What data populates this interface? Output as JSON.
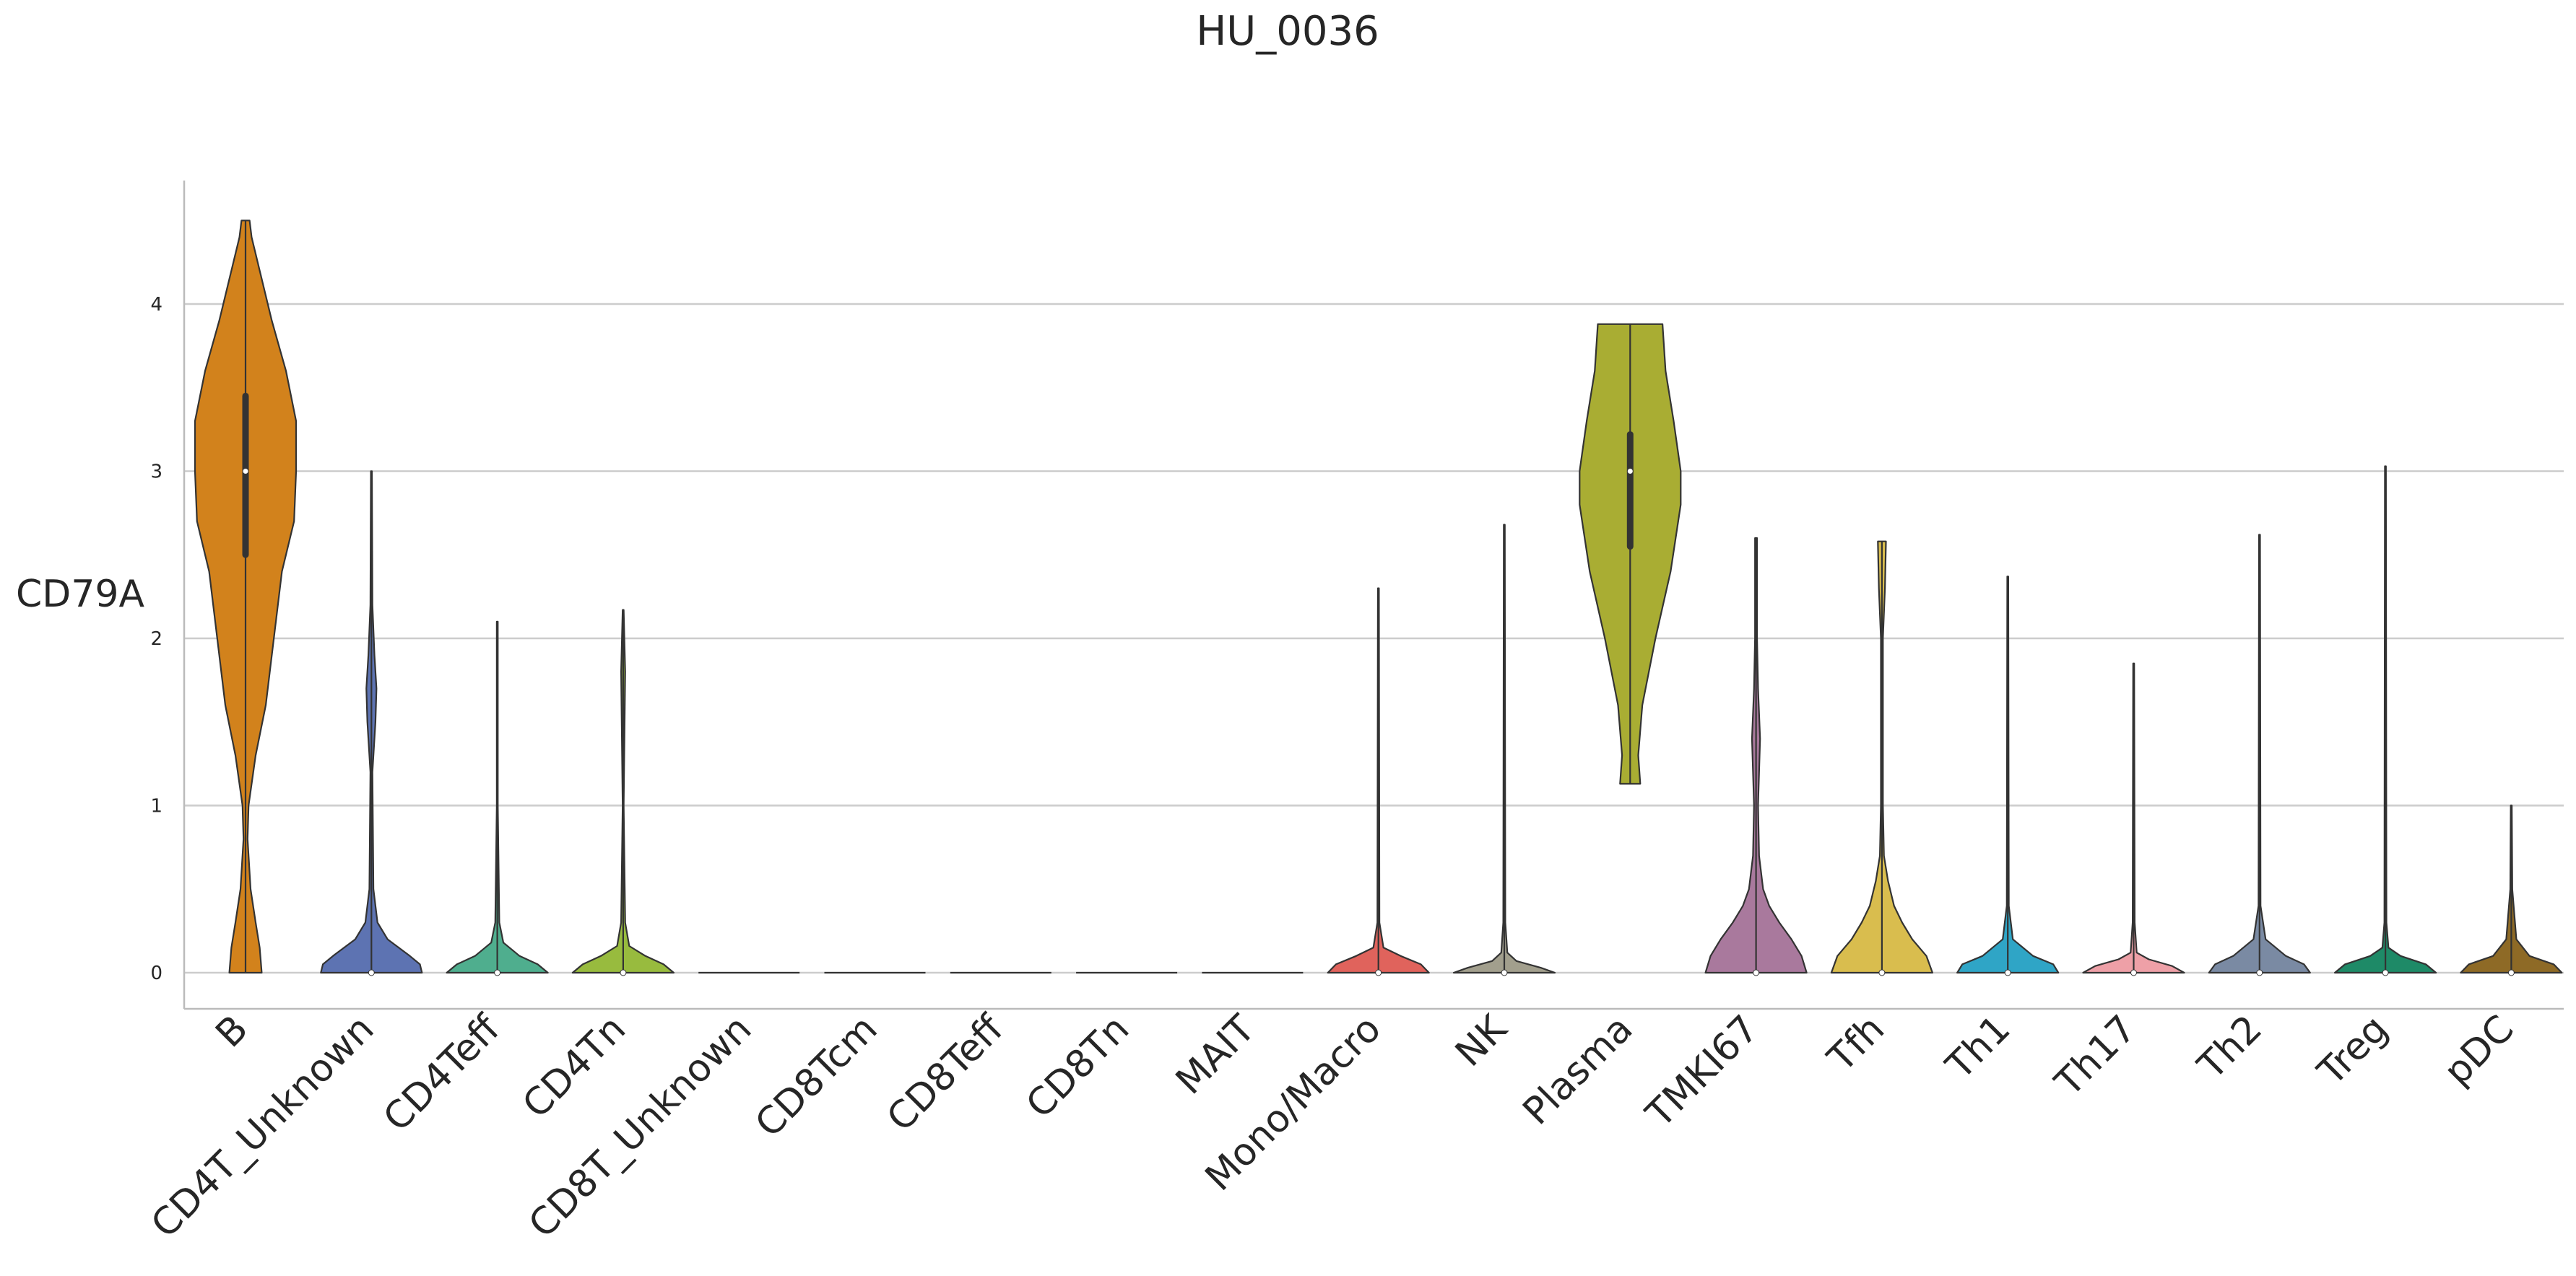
{
  "chart_data": {
    "type": "violin",
    "title": "HU_0036",
    "ylabel": "CD79A",
    "xlabel": "",
    "ylim": [
      -0.2,
      4.75
    ],
    "yticks": [
      0,
      1,
      2,
      3,
      4
    ],
    "grid": "horizontal",
    "categories": [
      "B",
      "CD4T_Unknown",
      "CD4Teff",
      "CD4Tn",
      "CD8T_Unknown",
      "CD8Tcm",
      "CD8Teff",
      "CD8Tn",
      "MAIT",
      "Mono/Macro",
      "NK",
      "Plasma",
      "TMKI67",
      "Tfh",
      "Th1",
      "Th17",
      "Th2",
      "Treg",
      "pDC"
    ],
    "series": [
      {
        "category": "B",
        "color": "#d2821c",
        "min": 0,
        "max": 4.5,
        "q1": 2.5,
        "median": 3.0,
        "q3": 3.45,
        "profile": [
          [
            0,
            0.16
          ],
          [
            0.15,
            0.14
          ],
          [
            0.3,
            0.1
          ],
          [
            0.5,
            0.05
          ],
          [
            0.8,
            0.02
          ],
          [
            1.0,
            0.03
          ],
          [
            1.3,
            0.1
          ],
          [
            1.6,
            0.2
          ],
          [
            2.0,
            0.28
          ],
          [
            2.4,
            0.36
          ],
          [
            2.7,
            0.48
          ],
          [
            3.0,
            0.5
          ],
          [
            3.3,
            0.5
          ],
          [
            3.6,
            0.4
          ],
          [
            3.9,
            0.26
          ],
          [
            4.2,
            0.14
          ],
          [
            4.4,
            0.06
          ],
          [
            4.5,
            0.04
          ]
        ]
      },
      {
        "category": "CD4T_Unknown",
        "color": "#5d73b2",
        "min": 0,
        "max": 3.0,
        "median": 0,
        "profile": [
          [
            0,
            0.5
          ],
          [
            0.05,
            0.48
          ],
          [
            0.1,
            0.38
          ],
          [
            0.2,
            0.16
          ],
          [
            0.3,
            0.06
          ],
          [
            0.5,
            0.02
          ],
          [
            1.2,
            0.01
          ],
          [
            1.5,
            0.04
          ],
          [
            1.7,
            0.05
          ],
          [
            1.9,
            0.03
          ],
          [
            2.2,
            0.01
          ],
          [
            3.0,
            0.005
          ]
        ]
      },
      {
        "category": "CD4Teff",
        "color": "#4fae8e",
        "min": 0,
        "max": 2.1,
        "median": 0,
        "profile": [
          [
            0,
            0.5
          ],
          [
            0.05,
            0.4
          ],
          [
            0.1,
            0.22
          ],
          [
            0.18,
            0.06
          ],
          [
            0.3,
            0.02
          ],
          [
            1.0,
            0.005
          ],
          [
            2.1,
            0.005
          ]
        ]
      },
      {
        "category": "CD4Tn",
        "color": "#98bb3e",
        "min": 0,
        "max": 2.17,
        "median": 0,
        "profile": [
          [
            0,
            0.5
          ],
          [
            0.05,
            0.4
          ],
          [
            0.1,
            0.22
          ],
          [
            0.16,
            0.06
          ],
          [
            0.3,
            0.02
          ],
          [
            1.0,
            0.005
          ],
          [
            1.8,
            0.02
          ],
          [
            2.17,
            0.005
          ]
        ]
      },
      {
        "category": "CD8T_Unknown",
        "color": "#8a8a8a",
        "min": 0,
        "max": 0,
        "median": null,
        "profile": []
      },
      {
        "category": "CD8Tcm",
        "color": "#8a8a8a",
        "min": 0,
        "max": 0,
        "median": null,
        "profile": []
      },
      {
        "category": "CD8Teff",
        "color": "#8a8a8a",
        "min": 0,
        "max": 0,
        "median": null,
        "profile": []
      },
      {
        "category": "CD8Tn",
        "color": "#8a8a8a",
        "min": 0,
        "max": 0,
        "median": null,
        "profile": []
      },
      {
        "category": "MAIT",
        "color": "#8a8a8a",
        "min": 0,
        "max": 0,
        "median": null,
        "profile": []
      },
      {
        "category": "Mono/Macro",
        "color": "#e0635c",
        "min": 0,
        "max": 2.3,
        "median": 0,
        "profile": [
          [
            0,
            0.5
          ],
          [
            0.05,
            0.42
          ],
          [
            0.1,
            0.22
          ],
          [
            0.15,
            0.05
          ],
          [
            0.3,
            0.01
          ],
          [
            2.3,
            0.005
          ]
        ]
      },
      {
        "category": "NK",
        "color": "#a29f8d",
        "min": 0,
        "max": 2.68,
        "median": 0,
        "profile": [
          [
            0,
            0.5
          ],
          [
            0.03,
            0.36
          ],
          [
            0.07,
            0.12
          ],
          [
            0.12,
            0.03
          ],
          [
            0.3,
            0.01
          ],
          [
            2.68,
            0.005
          ]
        ]
      },
      {
        "category": "Plasma",
        "color": "#a9ad33",
        "min": 1.13,
        "max": 3.88,
        "q1": 2.55,
        "median": 3.0,
        "q3": 3.22,
        "profile": [
          [
            1.13,
            0.1
          ],
          [
            1.3,
            0.08
          ],
          [
            1.6,
            0.12
          ],
          [
            2.0,
            0.25
          ],
          [
            2.4,
            0.4
          ],
          [
            2.8,
            0.5
          ],
          [
            3.0,
            0.5
          ],
          [
            3.3,
            0.43
          ],
          [
            3.6,
            0.35
          ],
          [
            3.88,
            0.32
          ]
        ]
      },
      {
        "category": "TMKI67",
        "color": "#a9799d",
        "min": 0,
        "max": 2.6,
        "median": 0,
        "profile": [
          [
            0,
            0.5
          ],
          [
            0.1,
            0.45
          ],
          [
            0.2,
            0.35
          ],
          [
            0.3,
            0.23
          ],
          [
            0.4,
            0.13
          ],
          [
            0.5,
            0.07
          ],
          [
            0.7,
            0.03
          ],
          [
            1.0,
            0.02
          ],
          [
            1.4,
            0.04
          ],
          [
            1.7,
            0.02
          ],
          [
            2.0,
            0.01
          ],
          [
            2.6,
            0.01
          ]
        ]
      },
      {
        "category": "Tfh",
        "color": "#d9bd4e",
        "min": 0,
        "max": 2.58,
        "median": 0,
        "profile": [
          [
            0,
            0.5
          ],
          [
            0.1,
            0.44
          ],
          [
            0.2,
            0.3
          ],
          [
            0.3,
            0.2
          ],
          [
            0.4,
            0.12
          ],
          [
            0.55,
            0.06
          ],
          [
            0.7,
            0.02
          ],
          [
            1.0,
            0.01
          ],
          [
            2.0,
            0.01
          ],
          [
            2.3,
            0.03
          ],
          [
            2.58,
            0.04
          ]
        ]
      },
      {
        "category": "Th1",
        "color": "#2fa5c6",
        "min": 0,
        "max": 2.37,
        "median": 0,
        "profile": [
          [
            0,
            0.5
          ],
          [
            0.05,
            0.45
          ],
          [
            0.1,
            0.25
          ],
          [
            0.2,
            0.05
          ],
          [
            0.4,
            0.01
          ],
          [
            2.37,
            0.005
          ]
        ]
      },
      {
        "category": "Th17",
        "color": "#eea0a7",
        "min": 0,
        "max": 1.85,
        "median": 0,
        "profile": [
          [
            0,
            0.5
          ],
          [
            0.04,
            0.38
          ],
          [
            0.08,
            0.15
          ],
          [
            0.12,
            0.03
          ],
          [
            0.3,
            0.01
          ],
          [
            1.85,
            0.005
          ]
        ]
      },
      {
        "category": "Th2",
        "color": "#7a8aa3",
        "min": 0,
        "max": 2.62,
        "median": 0,
        "profile": [
          [
            0,
            0.5
          ],
          [
            0.05,
            0.44
          ],
          [
            0.1,
            0.26
          ],
          [
            0.2,
            0.06
          ],
          [
            0.4,
            0.01
          ],
          [
            2.62,
            0.005
          ]
        ]
      },
      {
        "category": "Treg",
        "color": "#1e8a67",
        "min": 0,
        "max": 3.03,
        "median": 0,
        "profile": [
          [
            0,
            0.5
          ],
          [
            0.05,
            0.4
          ],
          [
            0.1,
            0.15
          ],
          [
            0.15,
            0.03
          ],
          [
            0.3,
            0.01
          ],
          [
            3.03,
            0.005
          ]
        ]
      },
      {
        "category": "pDC",
        "color": "#8e6a26",
        "min": 0,
        "max": 1.0,
        "median": 0,
        "profile": [
          [
            0,
            0.5
          ],
          [
            0.05,
            0.42
          ],
          [
            0.1,
            0.18
          ],
          [
            0.2,
            0.05
          ],
          [
            0.5,
            0.01
          ],
          [
            1.0,
            0.005
          ]
        ]
      }
    ]
  }
}
